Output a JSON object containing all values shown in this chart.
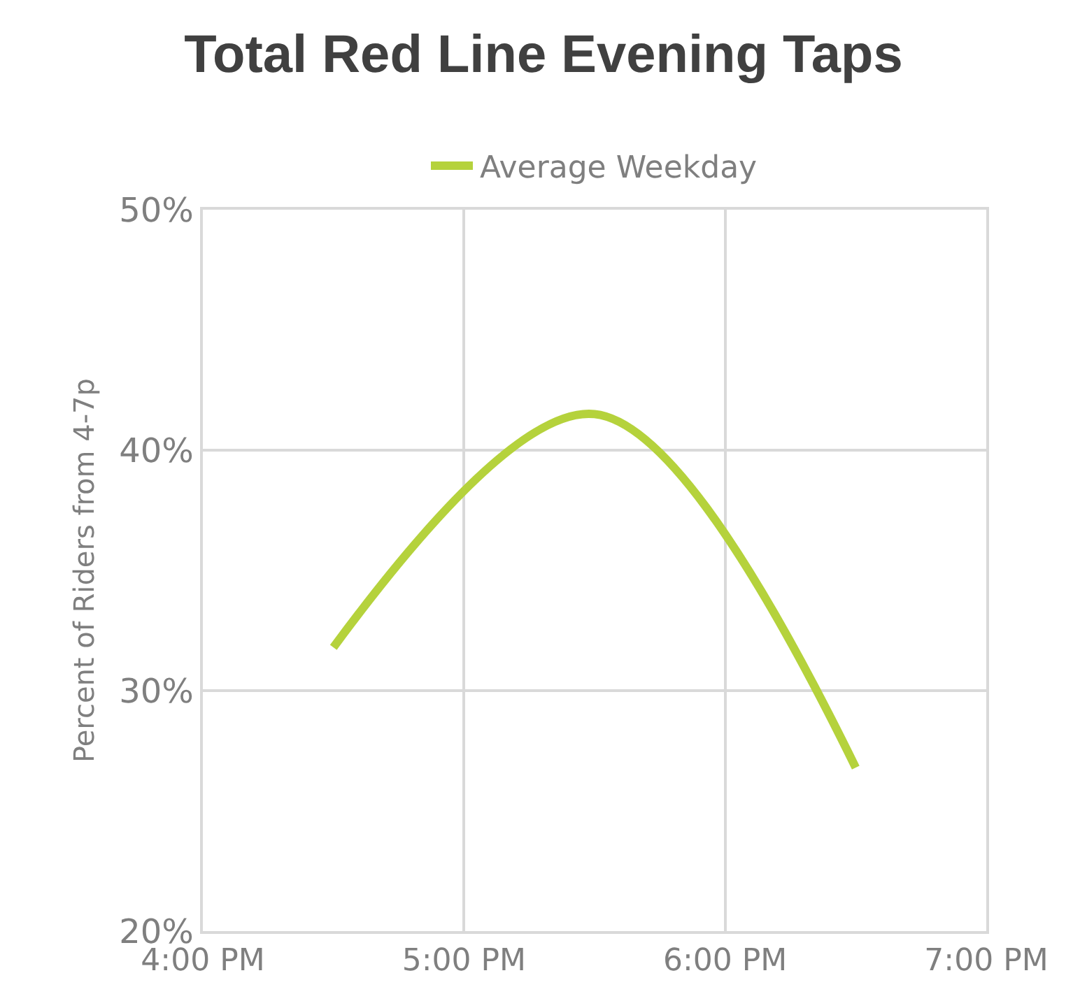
{
  "chart_data": {
    "type": "line",
    "title": "Total Red Line Evening Taps",
    "ylabel": "Percent of Riders from 4-7p",
    "x": [
      16.5,
      17.5,
      18.5
    ],
    "series": [
      {
        "name": "Average Weekday",
        "color": "#b5d23c",
        "values": [
          31.8,
          41.5,
          26.8
        ]
      }
    ],
    "xlim": [
      16,
      19
    ],
    "xticks": [
      {
        "value": 16,
        "label": "4:00 PM"
      },
      {
        "value": 17,
        "label": "5:00 PM"
      },
      {
        "value": 18,
        "label": "6:00 PM"
      },
      {
        "value": 19,
        "label": "7:00 PM"
      }
    ],
    "ylim": [
      20,
      50
    ],
    "yticks": [
      {
        "value": 20,
        "label": "20%"
      },
      {
        "value": 30,
        "label": "30%"
      },
      {
        "value": 40,
        "label": "40%"
      },
      {
        "value": 50,
        "label": "50%"
      }
    ],
    "grid": true,
    "legend": "top",
    "marker": "none",
    "line_style": "solid"
  }
}
